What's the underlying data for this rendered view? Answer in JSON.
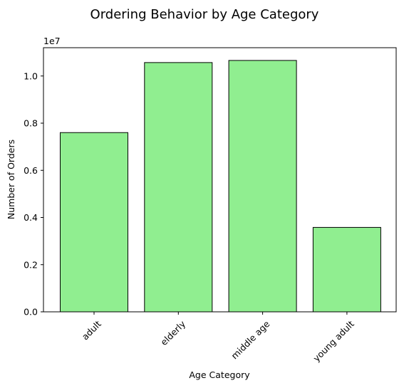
{
  "chart_data": {
    "type": "bar",
    "title": "Ordering Behavior by Age Category",
    "xlabel": "Age Category",
    "ylabel": "Number of Orders",
    "y_offset_label": "1e7",
    "categories": [
      "adult",
      "elderly",
      "middle age",
      "young adult"
    ],
    "values": [
      7600000,
      10570000,
      10660000,
      3580000
    ],
    "ylim": [
      0,
      11200000
    ],
    "yticks": [
      0,
      2000000,
      4000000,
      6000000,
      8000000,
      10000000
    ],
    "ytick_labels": [
      "0.0",
      "0.2",
      "0.4",
      "0.6",
      "0.8",
      "1.0"
    ],
    "grid": false,
    "legend": "none",
    "colors": {
      "bar_fill": "#90ee90",
      "bar_edge": "#000000",
      "axis": "#000000",
      "text": "#000000",
      "background": "#ffffff"
    }
  }
}
